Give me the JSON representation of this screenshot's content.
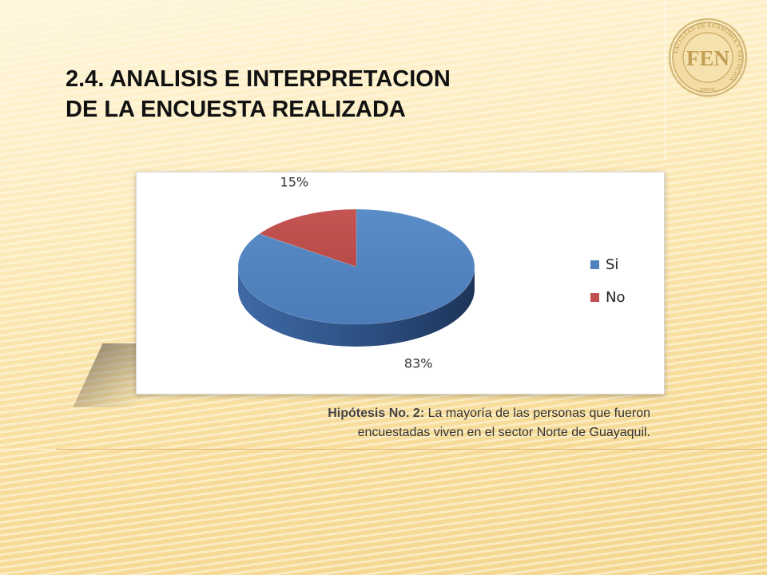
{
  "slide": {
    "title_line1": "2.4. ANALISIS E INTERPRETACION",
    "title_line2": "DE LA ENCUESTA REALIZADA",
    "logo": {
      "text": "FEN",
      "ring_text": "FACULTAD DE ECONOMIA Y NEGOCIOS",
      "bottom_text": "ESPOL",
      "color": "#c9a862"
    },
    "caption": {
      "label": "Hipótesis No. 2:",
      "text_line1": " La mayoría de las personas que fueron",
      "text_line2": "encuestadas viven en el sector Norte de Guayaquil."
    }
  },
  "chart_data": {
    "type": "pie",
    "style": "3d",
    "categories": [
      "Si",
      "No"
    ],
    "values": [
      83,
      15
    ],
    "data_labels": [
      "83%",
      "15%"
    ],
    "colors": [
      "#4f81bd",
      "#c0504d"
    ],
    "legend_position": "right"
  }
}
